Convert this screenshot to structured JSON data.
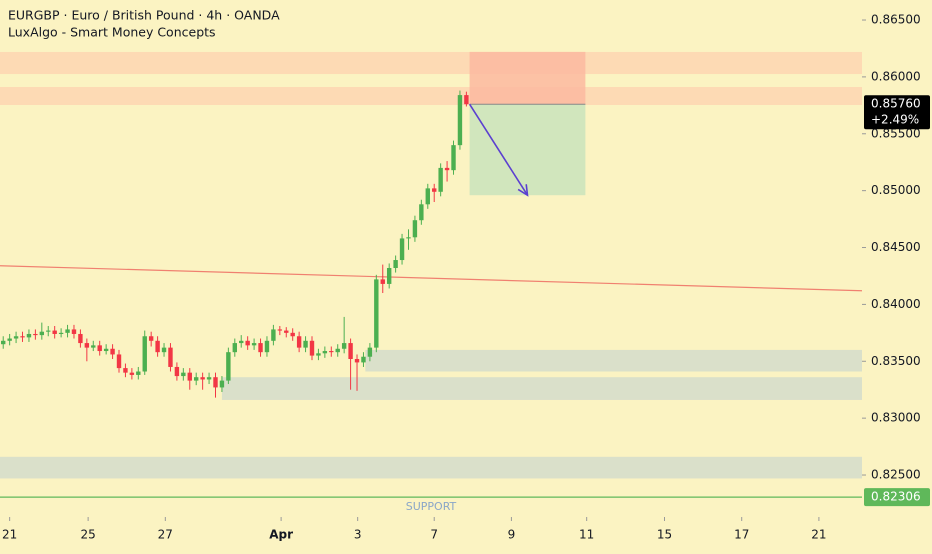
{
  "chart_data": {
    "type": "candlestick",
    "title": "EURGBP · Euro / British Pound · 4h · OANDA",
    "subtitle": "LuxAlgo - Smart Money Concepts",
    "up_color": "#4caf50",
    "down_color": "#f23645",
    "background": "#fbf3c2",
    "xlim": [
      -0.5,
      133.5
    ],
    "ylim": [
      0.82131,
      0.86676
    ],
    "yticks": [
      {
        "value": 0.825,
        "label": "0.82500"
      },
      {
        "value": 0.83,
        "label": "0.83000"
      },
      {
        "value": 0.835,
        "label": "0.83500"
      },
      {
        "value": 0.84,
        "label": "0.84000"
      },
      {
        "value": 0.845,
        "label": "0.84500"
      },
      {
        "value": 0.85,
        "label": "0.85000"
      },
      {
        "value": 0.855,
        "label": "0.85500"
      },
      {
        "value": 0.86,
        "label": "0.86000"
      },
      {
        "value": 0.865,
        "label": "0.86500"
      }
    ],
    "xticks": [
      {
        "value": 1,
        "label": "21"
      },
      {
        "value": 13.2,
        "label": "25"
      },
      {
        "value": 25.2,
        "label": "27"
      },
      {
        "value": 43.2,
        "label": "Apr"
      },
      {
        "value": 55.1,
        "label": "3"
      },
      {
        "value": 67,
        "label": "7"
      },
      {
        "value": 79,
        "label": "9"
      },
      {
        "value": 90.7,
        "label": "11"
      },
      {
        "value": 102.8,
        "label": "15"
      },
      {
        "value": 114.8,
        "label": "17"
      },
      {
        "value": 126.8,
        "label": "21"
      }
    ],
    "open": [
      0.8365,
      0.8368,
      0.837,
      0.8372,
      0.8371,
      0.8374,
      0.8373,
      0.8376,
      0.8377,
      0.8374,
      0.8375,
      0.8378,
      0.8374,
      0.8366,
      0.8362,
      0.8364,
      0.8359,
      0.8361,
      0.8356,
      0.8344,
      0.834,
      0.8338,
      0.8341,
      0.8372,
      0.8368,
      0.8358,
      0.8362,
      0.8345,
      0.8337,
      0.834,
      0.8333,
      0.8336,
      0.8334,
      0.8336,
      0.8327,
      0.8333,
      0.8358,
      0.8366,
      0.8368,
      0.8364,
      0.8366,
      0.8358,
      0.8368,
      0.8378,
      0.8377,
      0.8375,
      0.8372,
      0.8362,
      0.8368,
      0.8355,
      0.8357,
      0.8359,
      0.8358,
      0.8361,
      0.8366,
      0.8352,
      0.8349,
      0.8354,
      0.8362,
      0.8422,
      0.8418,
      0.8432,
      0.8439,
      0.8458,
      0.8459,
      0.8474,
      0.8488,
      0.8502,
      0.8499,
      0.852,
      0.8518,
      0.854,
      0.8584
    ],
    "high": [
      0.8372,
      0.8374,
      0.8376,
      0.8376,
      0.8378,
      0.8378,
      0.8384,
      0.8381,
      0.8381,
      0.8379,
      0.8382,
      0.8382,
      0.8378,
      0.837,
      0.8368,
      0.8368,
      0.8365,
      0.8365,
      0.836,
      0.8348,
      0.8344,
      0.8345,
      0.8377,
      0.8376,
      0.8372,
      0.8366,
      0.8366,
      0.8349,
      0.8344,
      0.8344,
      0.834,
      0.834,
      0.834,
      0.834,
      0.8337,
      0.8362,
      0.837,
      0.8373,
      0.8372,
      0.837,
      0.837,
      0.8372,
      0.8382,
      0.8381,
      0.838,
      0.8379,
      0.8376,
      0.8372,
      0.8372,
      0.8361,
      0.8363,
      0.8363,
      0.8365,
      0.8389,
      0.837,
      0.8356,
      0.8358,
      0.8366,
      0.8426,
      0.8435,
      0.8436,
      0.8443,
      0.8462,
      0.8466,
      0.8478,
      0.8492,
      0.8506,
      0.8506,
      0.8524,
      0.8526,
      0.8544,
      0.8588,
      0.8587
    ],
    "low": [
      0.8361,
      0.8364,
      0.8366,
      0.8367,
      0.8367,
      0.8369,
      0.8369,
      0.8372,
      0.837,
      0.8371,
      0.8371,
      0.837,
      0.8362,
      0.835,
      0.8359,
      0.8355,
      0.8356,
      0.8352,
      0.834,
      0.8336,
      0.8334,
      0.8334,
      0.8338,
      0.8363,
      0.8354,
      0.8354,
      0.8341,
      0.8333,
      0.8333,
      0.8325,
      0.8329,
      0.8325,
      0.833,
      0.8318,
      0.8323,
      0.833,
      0.8354,
      0.8362,
      0.836,
      0.836,
      0.8354,
      0.8354,
      0.8364,
      0.8373,
      0.8371,
      0.8368,
      0.8358,
      0.8358,
      0.8351,
      0.8351,
      0.8353,
      0.8354,
      0.8354,
      0.8357,
      0.8325,
      0.8324,
      0.8345,
      0.835,
      0.8358,
      0.841,
      0.8414,
      0.8428,
      0.8435,
      0.8448,
      0.8455,
      0.847,
      0.8484,
      0.849,
      0.8495,
      0.8508,
      0.8514,
      0.8536,
      0.8574
    ],
    "close": [
      0.8368,
      0.837,
      0.8372,
      0.8371,
      0.8374,
      0.8373,
      0.8376,
      0.8377,
      0.8374,
      0.8375,
      0.8378,
      0.8374,
      0.8366,
      0.8362,
      0.8364,
      0.8359,
      0.8361,
      0.8356,
      0.8344,
      0.834,
      0.8338,
      0.8341,
      0.8372,
      0.8368,
      0.8358,
      0.8362,
      0.8345,
      0.8337,
      0.834,
      0.8333,
      0.8336,
      0.8334,
      0.8336,
      0.8327,
      0.8333,
      0.8358,
      0.8366,
      0.8368,
      0.8364,
      0.8366,
      0.8358,
      0.8368,
      0.8378,
      0.8377,
      0.8375,
      0.8372,
      0.8362,
      0.8368,
      0.8355,
      0.8357,
      0.8359,
      0.8358,
      0.8361,
      0.8366,
      0.8352,
      0.8349,
      0.8354,
      0.8362,
      0.8422,
      0.8418,
      0.8432,
      0.8439,
      0.8458,
      0.8459,
      0.8474,
      0.8488,
      0.8502,
      0.8499,
      0.852,
      0.8518,
      0.854,
      0.8584,
      0.8576
    ],
    "zones": [
      {
        "y": [
          0.86025,
          0.86219
        ],
        "color": "#fdd5b1"
      },
      {
        "y": [
          0.85753,
          0.85911
        ],
        "color": "#fdd5b1"
      },
      {
        "y": [
          0.8341,
          0.836
        ],
        "x": [
          56.3,
          133.5
        ],
        "color": "#d3dccb"
      },
      {
        "y": [
          0.8316,
          0.8336
        ],
        "x": [
          34,
          133.5
        ],
        "color": "#d3dccb"
      },
      {
        "y": [
          0.8247,
          0.8266
        ],
        "color": "#d3dccb"
      }
    ],
    "trade": {
      "x": [
        72.5,
        90.5
      ],
      "entry": 0.8576,
      "stop": 0.8622,
      "target": 0.8496,
      "stop_color": "#fbb9a0",
      "target_color": "#cfe5bd"
    },
    "arrow": {
      "x": [
        72.5,
        81.5
      ],
      "y": [
        0.8576,
        0.8496
      ],
      "color": "#5b3fd0"
    },
    "trend_line": {
      "x": [
        -0.5,
        133.5
      ],
      "y": [
        0.8434,
        0.8412
      ],
      "color": "#f08070"
    },
    "support": {
      "value": 0.82306,
      "label": "0.82306",
      "text": "SUPPORT",
      "color": "#5fb85a"
    },
    "last_price": {
      "value": 0.8576,
      "label": "0.85760"
    },
    "change": {
      "value": 2.49,
      "label": "+2.49%"
    }
  }
}
